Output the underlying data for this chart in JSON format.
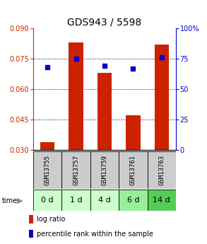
{
  "title": "GDS943 / 5598",
  "samples": [
    "GSM13755",
    "GSM13757",
    "GSM13759",
    "GSM13761",
    "GSM13763"
  ],
  "time_labels": [
    "0 d",
    "1 d",
    "4 d",
    "6 d",
    "14 d"
  ],
  "log_ratio": [
    0.034,
    0.083,
    0.068,
    0.047,
    0.082
  ],
  "percentile_rank": [
    68,
    75,
    69,
    67,
    76
  ],
  "ylim_left": [
    0.03,
    0.09
  ],
  "ylim_right": [
    0,
    100
  ],
  "yticks_left": [
    0.03,
    0.045,
    0.06,
    0.075,
    0.09
  ],
  "yticks_right": [
    0,
    25,
    50,
    75,
    100
  ],
  "bar_color": "#cc2200",
  "dot_color": "#0000cc",
  "title_fontsize": 10,
  "tick_fontsize": 7,
  "sample_label_fontsize": 6.5,
  "time_label_fontsize": 8,
  "legend_fontsize": 7,
  "gsm_label_color": "#000000",
  "time_colors": [
    "#ccffcc",
    "#ccffcc",
    "#ccffcc",
    "#99ee99",
    "#55cc55"
  ],
  "gsm_bg_color": "#cccccc",
  "left_tick_color": "#cc2200",
  "right_tick_color": "#0000cc",
  "bar_width": 0.5,
  "gridline_yticks": [
    0.045,
    0.06,
    0.075
  ]
}
